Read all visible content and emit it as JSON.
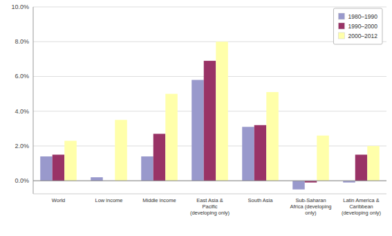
{
  "chart_data": {
    "type": "bar",
    "categories": [
      "World",
      "Low income",
      "Middle income",
      "East Asia &\nPacific\n(developing only)",
      "South Asia",
      "Sub-Saharan\nAfrica (developing\nonly)",
      "Latin America &\nCaribbean\n(developing only)"
    ],
    "series": [
      {
        "name": "1980–1990",
        "color": "#9999cc",
        "values": [
          1.4,
          0.2,
          1.4,
          5.8,
          3.1,
          -0.5,
          -0.1
        ]
      },
      {
        "name": "1990–2000",
        "color": "#993366",
        "values": [
          1.5,
          0.0,
          2.7,
          6.9,
          3.2,
          -0.1,
          1.5
        ]
      },
      {
        "name": "2000–2012",
        "color": "#ffffaa",
        "values": [
          2.3,
          3.5,
          5.0,
          8.0,
          5.1,
          2.6,
          2.0
        ]
      }
    ],
    "ylim": [
      -0.75,
      10.0
    ],
    "yticks": [
      {
        "value": 0.0,
        "label": "0.0%"
      },
      {
        "value": 2.0,
        "label": "2.0%"
      },
      {
        "value": 4.0,
        "label": "4.0%"
      },
      {
        "value": 6.0,
        "label": "6.0%"
      },
      {
        "value": 8.0,
        "label": "8.0%"
      },
      {
        "value": 10.0,
        "label": "10.0%"
      }
    ],
    "grid": true,
    "legend": "upper right"
  }
}
